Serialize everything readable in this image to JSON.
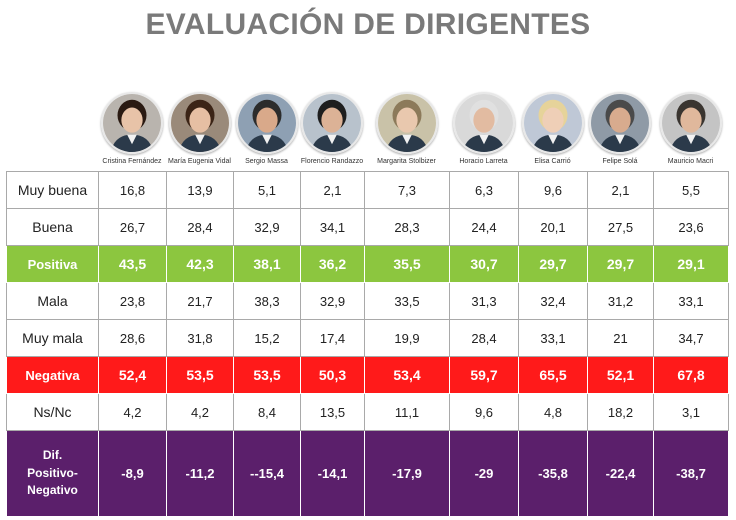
{
  "title": "EVALUACIÓN DE DIRIGENTES",
  "colors": {
    "positiva": "#8cc63f",
    "negativa": "#ff1a1a",
    "dif": "#5b1f6b",
    "title": "#7a7a7a"
  },
  "chart_data": {
    "type": "table",
    "title": "EVALUACIÓN DE DIRIGENTES",
    "columns": [
      "Cristina Fernández",
      "María Eugenia Vidal",
      "Sergio Massa",
      "Florencio Randazzo",
      "Margarita Stolbizer",
      "Horacio Larreta",
      "Elisa Carrió",
      "Felipe Solá",
      "Mauricio Macri"
    ],
    "rows": [
      {
        "label": "Muy buena",
        "style": "normal",
        "values": [
          "16,8",
          "13,9",
          "5,1",
          "2,1",
          "7,3",
          "6,3",
          "9,6",
          "2,1",
          "5,5"
        ]
      },
      {
        "label": "Buena",
        "style": "normal",
        "values": [
          "26,7",
          "28,4",
          "32,9",
          "34,1",
          "28,3",
          "24,4",
          "20,1",
          "27,5",
          "23,6"
        ]
      },
      {
        "label": "Positiva",
        "style": "positiva",
        "values": [
          "43,5",
          "42,3",
          "38,1",
          "36,2",
          "35,5",
          "30,7",
          "29,7",
          "29,7",
          "29,1"
        ]
      },
      {
        "label": "Mala",
        "style": "normal",
        "values": [
          "23,8",
          "21,7",
          "38,3",
          "32,9",
          "33,5",
          "31,3",
          "32,4",
          "31,2",
          "33,1"
        ]
      },
      {
        "label": "Muy mala",
        "style": "normal",
        "values": [
          "28,6",
          "31,8",
          "15,2",
          "17,4",
          "19,9",
          "28,4",
          "33,1",
          "21",
          "34,7"
        ]
      },
      {
        "label": "Negativa",
        "style": "negativa",
        "values": [
          "52,4",
          "53,5",
          "53,5",
          "50,3",
          "53,4",
          "59,7",
          "65,5",
          "52,1",
          "67,8"
        ]
      },
      {
        "label": "Ns/Nc",
        "style": "normal",
        "values": [
          "4,2",
          "4,2",
          "8,4",
          "13,5",
          "11,1",
          "9,6",
          "4,8",
          "18,2",
          "3,1"
        ]
      },
      {
        "label": "Dif.\nPositivo-\nNegativo",
        "style": "dif",
        "values": [
          "-8,9",
          "-11,2",
          "--15,4",
          "-14,1",
          "-17,9",
          "-29",
          "-35,8",
          "-22,4",
          "-38,7"
        ]
      }
    ]
  }
}
